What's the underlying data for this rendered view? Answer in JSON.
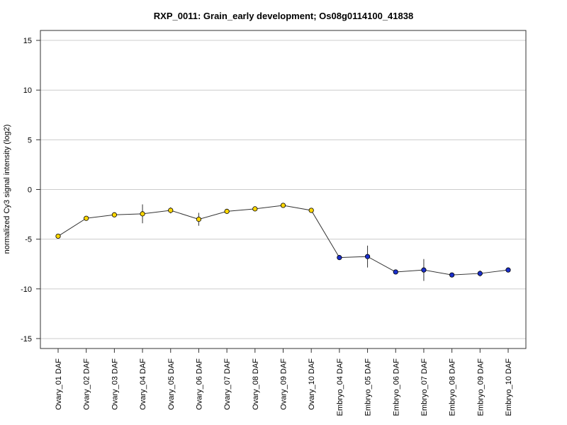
{
  "chart_data": {
    "type": "line",
    "title": "RXP_0011: Grain_early development; Os08g0114100_41838",
    "xlabel": "",
    "ylabel": "normalized Cy3 signal intensity (log2)",
    "ylim": [
      -16,
      16
    ],
    "yticks": [
      -15,
      -10,
      -5,
      0,
      5,
      10,
      15
    ],
    "grid": true,
    "categories": [
      "Ovary_01 DAF",
      "Ovary_02 DAF",
      "Ovary_03 DAF",
      "Ovary_04 DAF",
      "Ovary_05 DAF",
      "Ovary_06 DAF",
      "Ovary_07 DAF",
      "Ovary_08 DAF",
      "Ovary_09 DAF",
      "Ovary_10 DAF",
      "Embryo_04 DAF",
      "Embryo_05 DAF",
      "Embryo_06 DAF",
      "Embryo_07 DAF",
      "Embryo_08 DAF",
      "Embryo_09 DAF",
      "Embryo_10 DAF"
    ],
    "series": [
      {
        "values": [
          -4.7,
          -2.9,
          -2.55,
          -2.45,
          -2.1,
          -3.0,
          -2.2,
          -1.95,
          -1.6,
          -2.1,
          -6.85,
          -6.75,
          -8.3,
          -8.1,
          -8.6,
          -8.45,
          -8.1
        ],
        "errors": [
          0.1,
          0.1,
          0.1,
          0.95,
          0.3,
          0.65,
          0.1,
          0.1,
          0.1,
          0.1,
          0.1,
          1.1,
          0.1,
          1.1,
          0.1,
          0.3,
          0.1
        ],
        "marker_colors": [
          "#ffd700",
          "#ffd700",
          "#ffd700",
          "#ffd700",
          "#ffd700",
          "#ffd700",
          "#ffd700",
          "#ffd700",
          "#ffd700",
          "#ffd700",
          "#1a2fcc",
          "#1a2fcc",
          "#1a2fcc",
          "#1a2fcc",
          "#1a2fcc",
          "#1a2fcc",
          "#1a2fcc"
        ]
      }
    ],
    "colors": {
      "line": "#333333",
      "grid": "#cccccc",
      "ovary": "#ffd700",
      "embryo": "#1a2fcc"
    }
  }
}
